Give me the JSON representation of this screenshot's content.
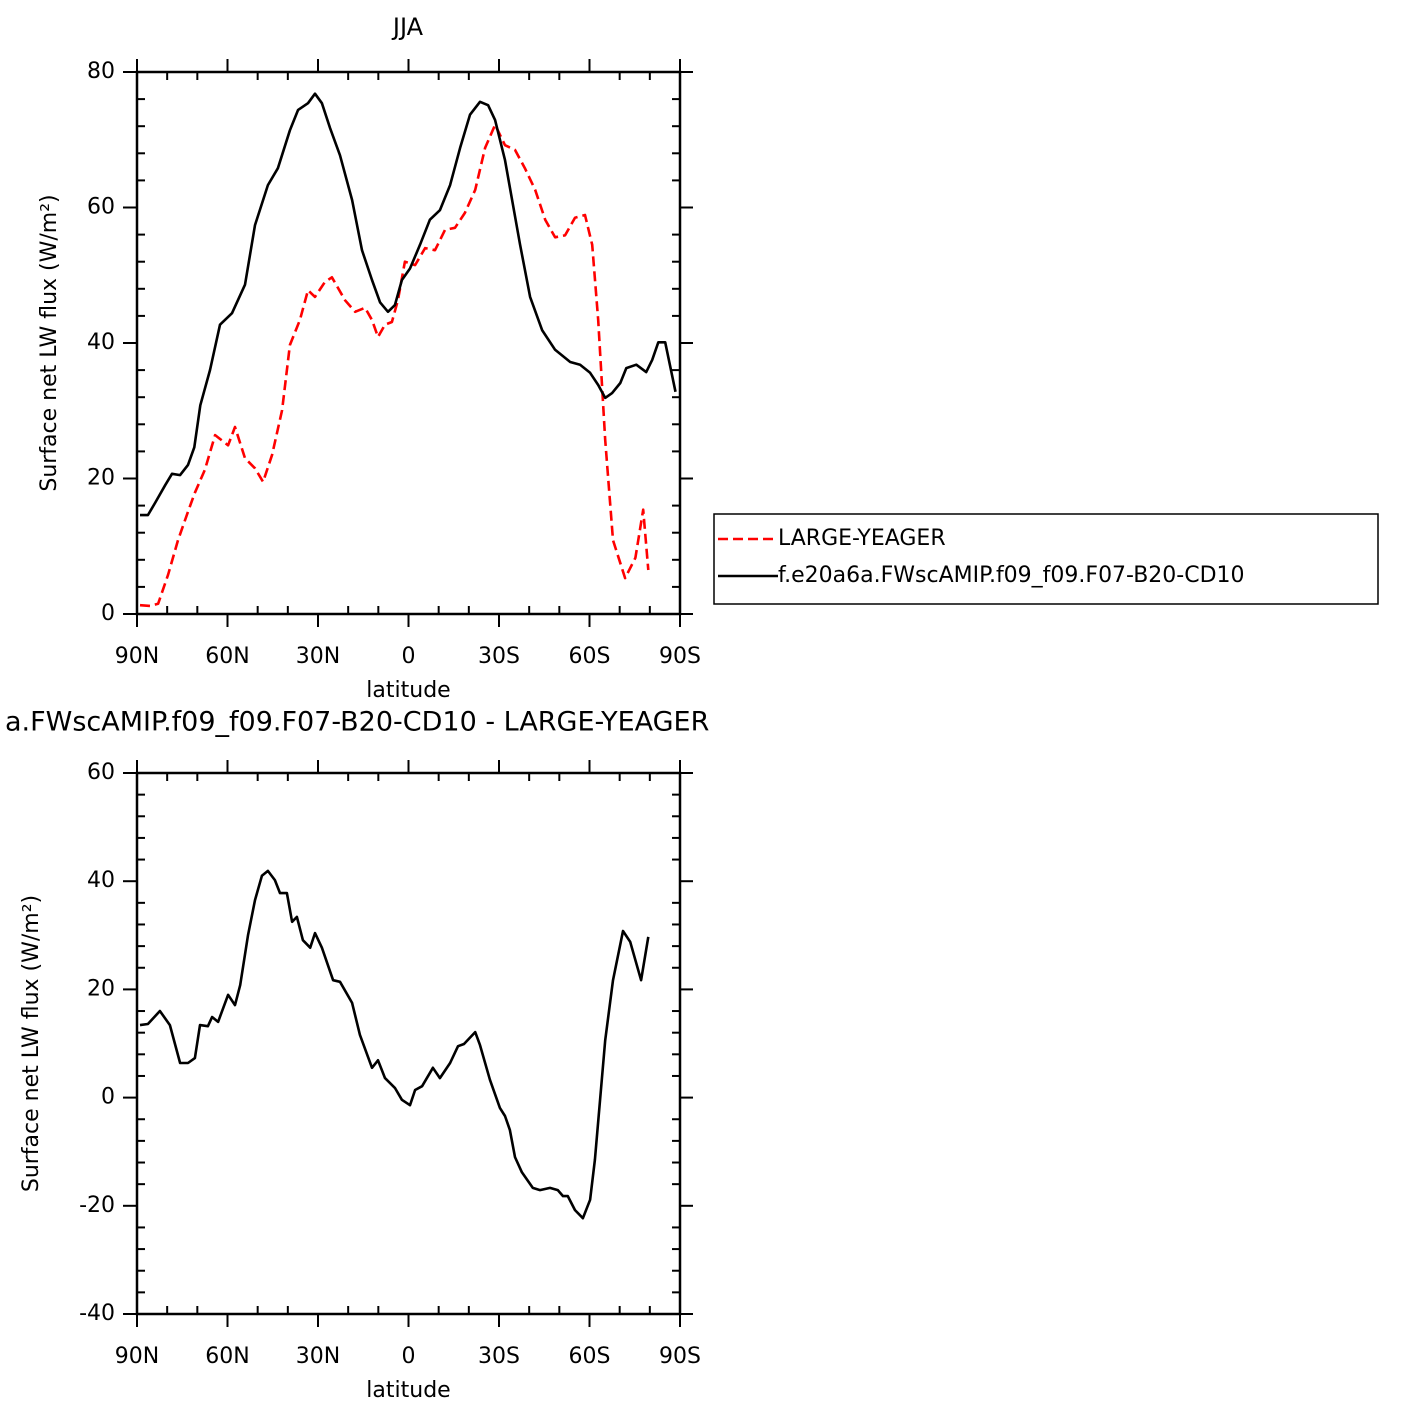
{
  "chart_data": [
    {
      "type": "line",
      "title": "JJA",
      "xlabel": "latitude",
      "ylabel": "Surface net LW flux (W/m²)",
      "xlim": [
        90,
        -90
      ],
      "xticks": [
        {
          "value": 90,
          "label": "90N"
        },
        {
          "value": 60,
          "label": "60N"
        },
        {
          "value": 30,
          "label": "30N"
        },
        0,
        {
          "value": -30,
          "label": "30S"
        },
        {
          "value": -60,
          "label": "60S"
        },
        {
          "value": -90,
          "label": "90S"
        }
      ],
      "ylim": [
        0,
        80
      ],
      "yticks": [
        0,
        20,
        40,
        60,
        80
      ],
      "legend": "outside-right",
      "series": [
        {
          "name": "LARGE-YEAGER",
          "color": "#ff0000",
          "dash": true,
          "x": [
            89,
            85.7,
            83,
            79.7,
            76.4,
            73.1,
            70.8,
            67.5,
            64.1,
            59.8,
            57.5,
            54.2,
            50.9,
            48.2,
            45.2,
            41.9,
            39.3,
            36,
            33.3,
            31,
            27.7,
            25.4,
            21,
            17.7,
            14.4,
            12.1,
            10.1,
            7.8,
            5.5,
            3.5,
            1.2,
            -2.2,
            -5.5,
            -8.8,
            -12.1,
            -15.4,
            -18.7,
            -22.1,
            -25.4,
            -28.7,
            -32,
            -35.3,
            -38.6,
            -42,
            -45.3,
            -48.6,
            -51.9,
            -55.2,
            -58.5,
            -60.9,
            -62.9,
            -65.2,
            -67.8,
            -71.8,
            -75.2,
            -77.8,
            -79.5
          ],
          "values": [
            1.3,
            1.2,
            1.5,
            5.8,
            10.9,
            15.1,
            17.9,
            21.3,
            26.4,
            24.9,
            27.6,
            23,
            21.5,
            19.5,
            23.5,
            30.1,
            39.7,
            43.4,
            47.8,
            46.8,
            49,
            49.7,
            46.3,
            44.6,
            45.2,
            43.4,
            40.9,
            42.7,
            43.1,
            46.3,
            52,
            51.5,
            54,
            53.7,
            56.7,
            57,
            59.2,
            62.6,
            68.8,
            72.2,
            69.2,
            68.5,
            65.8,
            62.6,
            58.2,
            55.6,
            55.9,
            58.5,
            58.9,
            54.5,
            43.4,
            25.7,
            10.9,
            5.3,
            8.3,
            15.4,
            6.5
          ]
        },
        {
          "name": "f.e20a6a.FWscAMIP.f09_f09.F07-B20-CD10",
          "color": "#000000",
          "dash": false,
          "x": [
            89,
            86.4,
            84,
            80.7,
            78.4,
            75.7,
            73.1,
            71,
            69,
            65.8,
            62.5,
            58.5,
            54.2,
            50.9,
            46.6,
            43.3,
            39.3,
            36.6,
            33.3,
            31,
            28.7,
            26,
            22.7,
            18.7,
            15.4,
            12.1,
            9.4,
            6.8,
            4.5,
            2.2,
            -0.5,
            -3.8,
            -7.1,
            -10.4,
            -13.8,
            -17.1,
            -20.4,
            -23.7,
            -26.4,
            -28.7,
            -32,
            -37,
            -40.3,
            -44.3,
            -48.6,
            -53.6,
            -56.9,
            -60.2,
            -62.9,
            -65.2,
            -67.5,
            -70.2,
            -72.2,
            -75.5,
            -78.8,
            -80.8,
            -82.8,
            -85.1,
            -88.5
          ],
          "values": [
            14.6,
            14.6,
            16.4,
            19,
            20.7,
            20.5,
            22,
            24.6,
            30.8,
            36,
            42.7,
            44.4,
            48.6,
            57.4,
            63.3,
            65.8,
            71.4,
            74.4,
            75.4,
            76.8,
            75.4,
            71.7,
            67.7,
            61.1,
            53.7,
            49.3,
            46,
            44.6,
            45.6,
            49.3,
            51,
            54.5,
            58.2,
            59.6,
            63.3,
            68.8,
            73.7,
            75.6,
            75.1,
            72.9,
            67,
            54.5,
            46.8,
            41.9,
            39,
            37.2,
            36.8,
            35.6,
            33.8,
            31.9,
            32.6,
            34.1,
            36.3,
            36.8,
            35.7,
            37.5,
            40.1,
            40.1,
            32.8
          ]
        }
      ]
    },
    {
      "type": "line",
      "title": "a.FWscAMIP.f09_f09.F07-B20-CD10 - LARGE-YEAGER",
      "xlabel": "latitude",
      "ylabel": "Surface net LW flux (W/m²)",
      "xlim": [
        90,
        -90
      ],
      "xticks": [
        {
          "value": 90,
          "label": "90N"
        },
        {
          "value": 60,
          "label": "60N"
        },
        {
          "value": 30,
          "label": "30N"
        },
        0,
        {
          "value": -30,
          "label": "30S"
        },
        {
          "value": -60,
          "label": "60S"
        },
        {
          "value": -90,
          "label": "90S"
        }
      ],
      "ylim": [
        -40,
        60
      ],
      "yticks": [
        -40,
        -20,
        0,
        20,
        40,
        60
      ],
      "color": "#000000",
      "x": [
        89,
        86.4,
        82.4,
        79.1,
        75.7,
        73.1,
        70.8,
        69.1,
        66.5,
        65.1,
        63.1,
        59.8,
        57.5,
        55.8,
        53.2,
        50.9,
        48.6,
        46.6,
        44.3,
        42.6,
        40.3,
        38.6,
        37,
        35,
        32.6,
        31,
        28.7,
        25,
        22.7,
        18.7,
        16.1,
        12.1,
        10.1,
        7.8,
        4.5,
        2.2,
        -0.5,
        -2.2,
        -4.5,
        -8.1,
        -10.4,
        -13.8,
        -16.4,
        -18.4,
        -22.1,
        -23.7,
        -27,
        -30.3,
        -32,
        -33.6,
        -35.3,
        -37.6,
        -41.2,
        -43.6,
        -46.9,
        -49.5,
        -51.2,
        -52.8,
        -55.2,
        -57.8,
        -60.2,
        -61.8,
        -65.2,
        -67.8,
        -71.1,
        -73.5,
        -77.1,
        -79.5
      ],
      "values": [
        13.4,
        13.6,
        16,
        13.4,
        6.4,
        6.4,
        7.3,
        13.4,
        13.2,
        14.9,
        14,
        19,
        17.1,
        20.8,
        30,
        36.5,
        41,
        41.9,
        40.2,
        37.8,
        37.8,
        32.5,
        33.4,
        29.1,
        27.7,
        30.4,
        27.7,
        21.7,
        21.4,
        17.5,
        11.6,
        5.5,
        6.9,
        3.6,
        1.8,
        -0.4,
        -1.4,
        1.4,
        2.1,
        5.5,
        3.6,
        6.4,
        9.5,
        9.9,
        12.1,
        9.7,
        3.3,
        -1.9,
        -3.4,
        -6,
        -11,
        -13.8,
        -16.7,
        -17.1,
        -16.7,
        -17.1,
        -18.2,
        -18.2,
        -20.8,
        -22.3,
        -18.9,
        -11.5,
        10.6,
        21.7,
        30.8,
        28.8,
        21.7,
        29.7
      ]
    }
  ]
}
